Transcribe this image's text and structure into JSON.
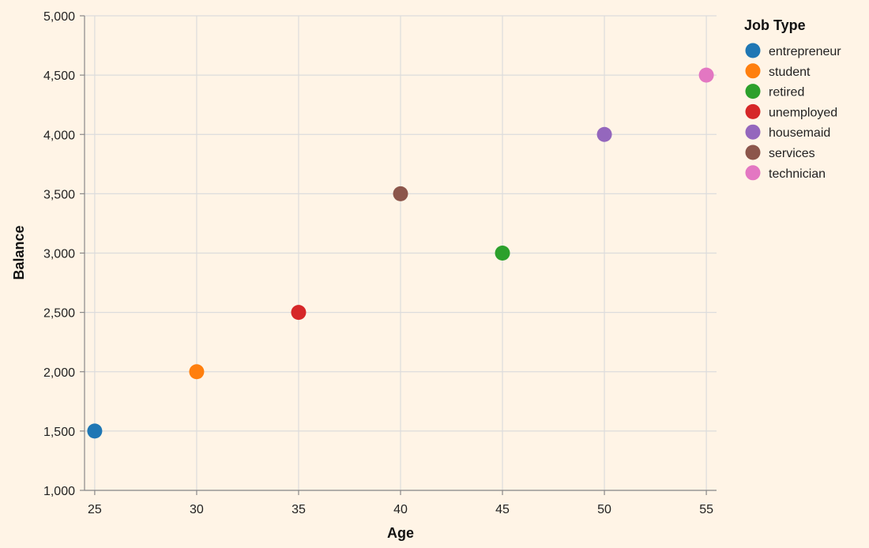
{
  "chart_data": {
    "type": "scatter",
    "xlabel": "Age",
    "ylabel": "Balance",
    "xlim": [
      24.5,
      55.5
    ],
    "ylim": [
      1000,
      5000
    ],
    "x_ticks": [
      25,
      30,
      35,
      40,
      45,
      50,
      55
    ],
    "y_ticks": [
      1000,
      1500,
      2000,
      2500,
      3000,
      3500,
      4000,
      4500,
      5000
    ],
    "y_tick_labels": [
      "1,000",
      "1,500",
      "2,000",
      "2,500",
      "3,000",
      "3,500",
      "4,000",
      "4,500",
      "5,000"
    ],
    "grid": true,
    "legend": {
      "title": "Job Type",
      "placement": "right"
    },
    "series": [
      {
        "name": "entrepreneur",
        "color": "#1f77b4",
        "points": [
          {
            "x": 25,
            "y": 1500
          }
        ]
      },
      {
        "name": "student",
        "color": "#ff7f0e",
        "points": [
          {
            "x": 30,
            "y": 2000
          }
        ]
      },
      {
        "name": "retired",
        "color": "#2ca02c",
        "points": [
          {
            "x": 45,
            "y": 3000
          }
        ]
      },
      {
        "name": "unemployed",
        "color": "#d62728",
        "points": [
          {
            "x": 35,
            "y": 2500
          }
        ]
      },
      {
        "name": "housemaid",
        "color": "#9467bd",
        "points": [
          {
            "x": 50,
            "y": 4000
          }
        ]
      },
      {
        "name": "services",
        "color": "#8c564b",
        "points": [
          {
            "x": 40,
            "y": 3500
          }
        ]
      },
      {
        "name": "technician",
        "color": "#e377c2",
        "points": [
          {
            "x": 55,
            "y": 4500
          }
        ]
      }
    ]
  }
}
